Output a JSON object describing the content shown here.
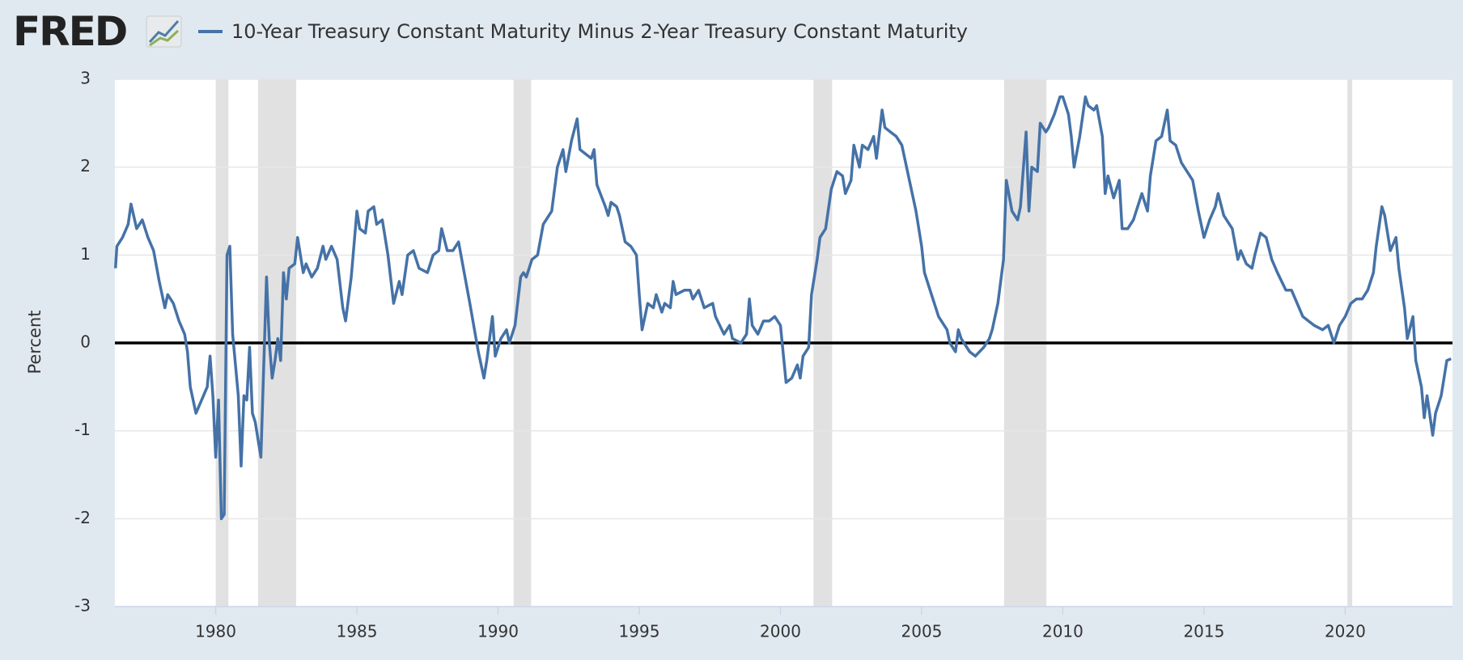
{
  "logo": "FRED",
  "chart_data": {
    "type": "line",
    "y_label": "Percent",
    "xlim": [
      1976.43,
      2023.8
    ],
    "xticks": [
      1980,
      1985,
      1990,
      1995,
      2000,
      2005,
      2010,
      2015,
      2020
    ],
    "ylim": [
      -3,
      3
    ],
    "yticks": [
      -3,
      -2,
      -1,
      0,
      1,
      2,
      3
    ],
    "grid": true,
    "zero_line": true,
    "recessions": [
      {
        "start": 1980.0,
        "end": 1980.45
      },
      {
        "start": 1981.5,
        "end": 1982.85
      },
      {
        "start": 1990.55,
        "end": 1991.17
      },
      {
        "start": 2001.17,
        "end": 2001.83
      },
      {
        "start": 2007.92,
        "end": 2009.42
      },
      {
        "start": 2020.08,
        "end": 2020.25
      }
    ],
    "x": [
      1976.45,
      1976.5,
      1976.7,
      1976.9,
      1977.0,
      1977.2,
      1977.4,
      1977.6,
      1977.8,
      1978.0,
      1978.2,
      1978.3,
      1978.5,
      1978.7,
      1978.9,
      1979.0,
      1979.1,
      1979.3,
      1979.5,
      1979.7,
      1979.8,
      1979.9,
      1980.0,
      1980.1,
      1980.2,
      1980.3,
      1980.4,
      1980.5,
      1980.6,
      1980.8,
      1980.9,
      1981.0,
      1981.1,
      1981.2,
      1981.3,
      1981.4,
      1981.6,
      1981.8,
      1981.9,
      1982.0,
      1982.1,
      1982.2,
      1982.3,
      1982.4,
      1982.5,
      1982.6,
      1982.8,
      1982.9,
      1983.1,
      1983.2,
      1983.4,
      1983.6,
      1983.8,
      1983.9,
      1984.1,
      1984.3,
      1984.5,
      1984.6,
      1984.8,
      1985.0,
      1985.1,
      1985.3,
      1985.4,
      1985.6,
      1985.7,
      1985.9,
      1986.1,
      1986.3,
      1986.5,
      1986.6,
      1986.8,
      1987.0,
      1987.2,
      1987.5,
      1987.7,
      1987.9,
      1988.0,
      1988.2,
      1988.4,
      1988.6,
      1988.8,
      1989.0,
      1989.3,
      1989.5,
      1989.6,
      1989.8,
      1989.9,
      1990.1,
      1990.3,
      1990.4,
      1990.6,
      1990.8,
      1990.9,
      1991.0,
      1991.2,
      1991.4,
      1991.6,
      1991.8,
      1991.9,
      1992.1,
      1992.3,
      1992.4,
      1992.6,
      1992.8,
      1992.9,
      1993.1,
      1993.3,
      1993.4,
      1993.5,
      1993.8,
      1993.9,
      1994.0,
      1994.2,
      1994.3,
      1994.5,
      1994.7,
      1994.9,
      1995.0,
      1995.1,
      1995.3,
      1995.5,
      1995.6,
      1995.8,
      1995.9,
      1996.1,
      1996.2,
      1996.3,
      1996.6,
      1996.8,
      1996.9,
      1997.1,
      1997.3,
      1997.6,
      1997.7,
      1998.0,
      1998.2,
      1998.3,
      1998.6,
      1998.8,
      1998.9,
      1999.0,
      1999.2,
      1999.4,
      1999.6,
      1999.8,
      2000.0,
      2000.2,
      2000.4,
      2000.6,
      2000.7,
      2000.8,
      2001.0,
      2001.1,
      2001.3,
      2001.4,
      2001.6,
      2001.8,
      2002.0,
      2002.2,
      2002.3,
      2002.5,
      2002.6,
      2002.8,
      2002.9,
      2003.1,
      2003.3,
      2003.4,
      2003.6,
      2003.7,
      2003.9,
      2004.1,
      2004.3,
      2004.5,
      2004.8,
      2005.0,
      2005.1,
      2005.4,
      2005.6,
      2005.9,
      2006.0,
      2006.2,
      2006.3,
      2006.4,
      2006.7,
      2006.9,
      2007.2,
      2007.4,
      2007.5,
      2007.7,
      2007.9,
      2008.0,
      2008.2,
      2008.4,
      2008.5,
      2008.7,
      2008.8,
      2008.9,
      2009.1,
      2009.2,
      2009.4,
      2009.5,
      2009.7,
      2009.9,
      2010.0,
      2010.2,
      2010.3,
      2010.4,
      2010.6,
      2010.8,
      2010.9,
      2011.1,
      2011.2,
      2011.4,
      2011.5,
      2011.6,
      2011.8,
      2012.0,
      2012.1,
      2012.3,
      2012.5,
      2012.8,
      2012.9,
      2013.0,
      2013.1,
      2013.3,
      2013.5,
      2013.7,
      2013.8,
      2014.0,
      2014.2,
      2014.4,
      2014.6,
      2014.8,
      2015.0,
      2015.2,
      2015.4,
      2015.5,
      2015.7,
      2016.0,
      2016.2,
      2016.3,
      2016.5,
      2016.7,
      2016.8,
      2017.0,
      2017.2,
      2017.4,
      2017.6,
      2017.9,
      2018.1,
      2018.3,
      2018.5,
      2018.7,
      2018.9,
      2019.2,
      2019.4,
      2019.6,
      2019.8,
      2020.0,
      2020.2,
      2020.4,
      2020.6,
      2020.8,
      2021.0,
      2021.1,
      2021.3,
      2021.4,
      2021.6,
      2021.8,
      2021.9,
      2022.1,
      2022.2,
      2022.4,
      2022.5,
      2022.7,
      2022.8,
      2022.9,
      2023.1,
      2023.2,
      2023.4,
      2023.6,
      2023.75
    ],
    "series": [
      {
        "name": "10-Year Treasury Constant Maturity Minus 2-Year Treasury Constant Maturity",
        "color": "#4572a7",
        "values": [
          0.85,
          1.1,
          1.2,
          1.35,
          1.58,
          1.3,
          1.4,
          1.2,
          1.05,
          0.7,
          0.4,
          0.55,
          0.45,
          0.25,
          0.1,
          -0.1,
          -0.5,
          -0.8,
          -0.65,
          -0.5,
          -0.15,
          -0.6,
          -1.3,
          -0.65,
          -2.0,
          -1.95,
          1.0,
          1.1,
          0.1,
          -0.6,
          -1.4,
          -0.6,
          -0.65,
          -0.05,
          -0.8,
          -0.9,
          -1.3,
          0.75,
          0.0,
          -0.4,
          -0.2,
          0.05,
          -0.2,
          0.8,
          0.5,
          0.85,
          0.9,
          1.2,
          0.8,
          0.9,
          0.75,
          0.85,
          1.1,
          0.95,
          1.1,
          0.95,
          0.4,
          0.25,
          0.75,
          1.5,
          1.3,
          1.25,
          1.5,
          1.55,
          1.35,
          1.4,
          1.0,
          0.45,
          0.7,
          0.55,
          1.0,
          1.05,
          0.85,
          0.8,
          1.0,
          1.05,
          1.3,
          1.05,
          1.05,
          1.15,
          0.8,
          0.45,
          -0.1,
          -0.4,
          -0.2,
          0.3,
          -0.15,
          0.05,
          0.15,
          0.0,
          0.2,
          0.75,
          0.8,
          0.75,
          0.95,
          1.0,
          1.35,
          1.45,
          1.5,
          2.0,
          2.2,
          1.95,
          2.3,
          2.55,
          2.2,
          2.15,
          2.1,
          2.2,
          1.8,
          1.55,
          1.45,
          1.6,
          1.55,
          1.45,
          1.15,
          1.1,
          1.0,
          0.55,
          0.15,
          0.45,
          0.4,
          0.55,
          0.35,
          0.45,
          0.4,
          0.7,
          0.55,
          0.6,
          0.6,
          0.5,
          0.6,
          0.4,
          0.45,
          0.3,
          0.1,
          0.2,
          0.05,
          0.0,
          0.1,
          0.5,
          0.2,
          0.1,
          0.25,
          0.25,
          0.3,
          0.2,
          -0.45,
          -0.4,
          -0.25,
          -0.4,
          -0.15,
          -0.05,
          0.55,
          0.95,
          1.2,
          1.3,
          1.75,
          1.95,
          1.9,
          1.7,
          1.85,
          2.25,
          2.0,
          2.25,
          2.2,
          2.35,
          2.1,
          2.65,
          2.45,
          2.4,
          2.35,
          2.25,
          1.95,
          1.5,
          1.1,
          0.8,
          0.5,
          0.3,
          0.15,
          0.0,
          -0.1,
          0.15,
          0.05,
          -0.1,
          -0.15,
          -0.05,
          0.05,
          0.15,
          0.45,
          0.95,
          1.85,
          1.5,
          1.4,
          1.55,
          2.4,
          1.5,
          2.0,
          1.95,
          2.5,
          2.4,
          2.45,
          2.6,
          2.8,
          2.8,
          2.6,
          2.35,
          2.0,
          2.35,
          2.8,
          2.7,
          2.65,
          2.7,
          2.35,
          1.7,
          1.9,
          1.65,
          1.85,
          1.3,
          1.3,
          1.4,
          1.7,
          1.6,
          1.5,
          1.9,
          2.3,
          2.35,
          2.65,
          2.3,
          2.25,
          2.05,
          1.95,
          1.85,
          1.5,
          1.2,
          1.4,
          1.55,
          1.7,
          1.45,
          1.3,
          0.95,
          1.05,
          0.9,
          0.85,
          1.0,
          1.25,
          1.2,
          0.95,
          0.8,
          0.6,
          0.6,
          0.45,
          0.3,
          0.25,
          0.2,
          0.15,
          0.2,
          0.0,
          0.2,
          0.3,
          0.45,
          0.5,
          0.5,
          0.6,
          0.8,
          1.1,
          1.55,
          1.45,
          1.05,
          1.2,
          0.85,
          0.4,
          0.05,
          0.3,
          -0.2,
          -0.5,
          -0.85,
          -0.6,
          -1.05,
          -0.8,
          -0.6,
          -0.2,
          -0.18
        ]
      }
    ]
  }
}
